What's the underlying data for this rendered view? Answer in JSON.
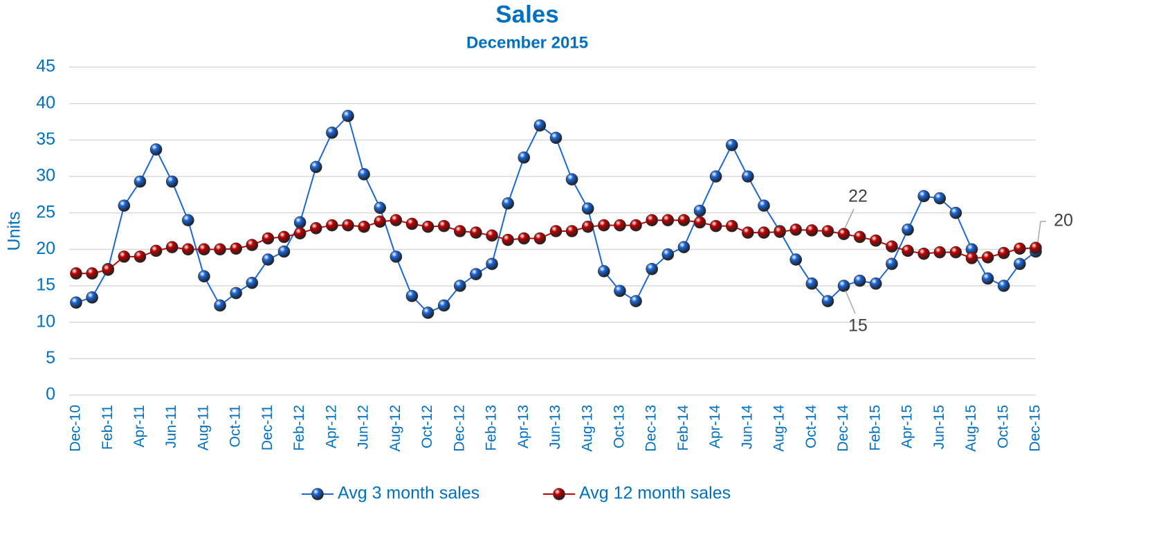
{
  "chart_data": {
    "type": "line",
    "title": "Sales",
    "subtitle": "December 2015",
    "y_label": "Units",
    "categories": [
      "Dec-10",
      null,
      "Feb-11",
      null,
      "Apr-11",
      null,
      "Jun-11",
      null,
      "Aug-11",
      null,
      "Oct-11",
      null,
      "Dec-11",
      null,
      "Feb-12",
      null,
      "Apr-12",
      null,
      "Jun-12",
      null,
      "Aug-12",
      null,
      "Oct-12",
      null,
      "Dec-12",
      null,
      "Feb-13",
      null,
      "Apr-13",
      null,
      "Jun-13",
      null,
      "Aug-13",
      null,
      "Oct-13",
      null,
      "Dec-13",
      null,
      "Feb-14",
      null,
      "Apr-14",
      null,
      "Jun-14",
      null,
      "Aug-14",
      null,
      "Oct-14",
      null,
      "Dec-14",
      null,
      "Feb-15",
      null,
      "Apr-15",
      null,
      "Jun-15",
      null,
      "Aug-15",
      null,
      "Oct-15",
      null,
      "Dec-15"
    ],
    "series": [
      {
        "name": "Avg 3 month sales",
        "color": "#1a66d6",
        "values": [
          12.7,
          13.4,
          17.3,
          26,
          29.3,
          33.7,
          29.3,
          24,
          16.3,
          12.3,
          14,
          15.4,
          18.6,
          19.7,
          23.7,
          31.3,
          36,
          38.3,
          30.3,
          25.7,
          19,
          13.6,
          11.3,
          12.3,
          15,
          16.6,
          18,
          26.3,
          32.6,
          37,
          35.3,
          29.6,
          25.6,
          17,
          14.3,
          12.9,
          17.3,
          19.3,
          20.3,
          25.3,
          30,
          34.3,
          30,
          26,
          22.5,
          18.6,
          15.3,
          12.9,
          15,
          15.7,
          15.3,
          18,
          22.7,
          27.3,
          27,
          25,
          20,
          16,
          15,
          18,
          19.7
        ],
        "value_labels": [
          null,
          null,
          null,
          null,
          null,
          null,
          null,
          null,
          null,
          null,
          null,
          null,
          null,
          null,
          null,
          null,
          null,
          null,
          null,
          null,
          null,
          null,
          null,
          null,
          null,
          null,
          null,
          null,
          null,
          null,
          null,
          null,
          null,
          null,
          null,
          null,
          null,
          null,
          null,
          null,
          null,
          null,
          null,
          null,
          null,
          null,
          null,
          null,
          "15",
          null,
          null,
          null,
          null,
          null,
          null,
          null,
          null,
          null,
          null,
          null,
          null
        ]
      },
      {
        "name": "Avg 12 month sales",
        "color": "#c00000",
        "values": [
          16.7,
          16.7,
          17.2,
          19,
          19,
          19.8,
          20.3,
          20,
          20,
          20,
          20.1,
          20.6,
          21.5,
          21.7,
          22.2,
          22.9,
          23.3,
          23.3,
          23.1,
          23.8,
          24,
          23.5,
          23.1,
          23.2,
          22.5,
          22.3,
          21.9,
          21.3,
          21.5,
          21.5,
          22.5,
          22.5,
          23.1,
          23.3,
          23.3,
          23.3,
          24,
          24,
          24,
          23.7,
          23.2,
          23.2,
          22.3,
          22.3,
          22.4,
          22.7,
          22.6,
          22.5,
          22.1,
          21.7,
          21.2,
          20.4,
          19.8,
          19.4,
          19.6,
          19.6,
          18.8,
          18.9,
          19.5,
          20.1,
          20.2
        ],
        "value_labels": [
          null,
          null,
          null,
          null,
          null,
          null,
          null,
          null,
          null,
          null,
          null,
          null,
          null,
          null,
          null,
          null,
          null,
          null,
          null,
          null,
          null,
          null,
          null,
          null,
          null,
          null,
          null,
          null,
          null,
          null,
          null,
          null,
          null,
          null,
          null,
          null,
          null,
          null,
          null,
          null,
          null,
          null,
          null,
          null,
          null,
          null,
          null,
          null,
          "22",
          null,
          null,
          null,
          null,
          null,
          null,
          null,
          null,
          null,
          null,
          null,
          "20"
        ]
      }
    ],
    "ylim": [
      0,
      45
    ],
    "yticks": [
      0,
      5,
      10,
      15,
      20,
      25,
      30,
      35,
      40,
      45
    ],
    "grid": true,
    "legend": "bottom"
  }
}
